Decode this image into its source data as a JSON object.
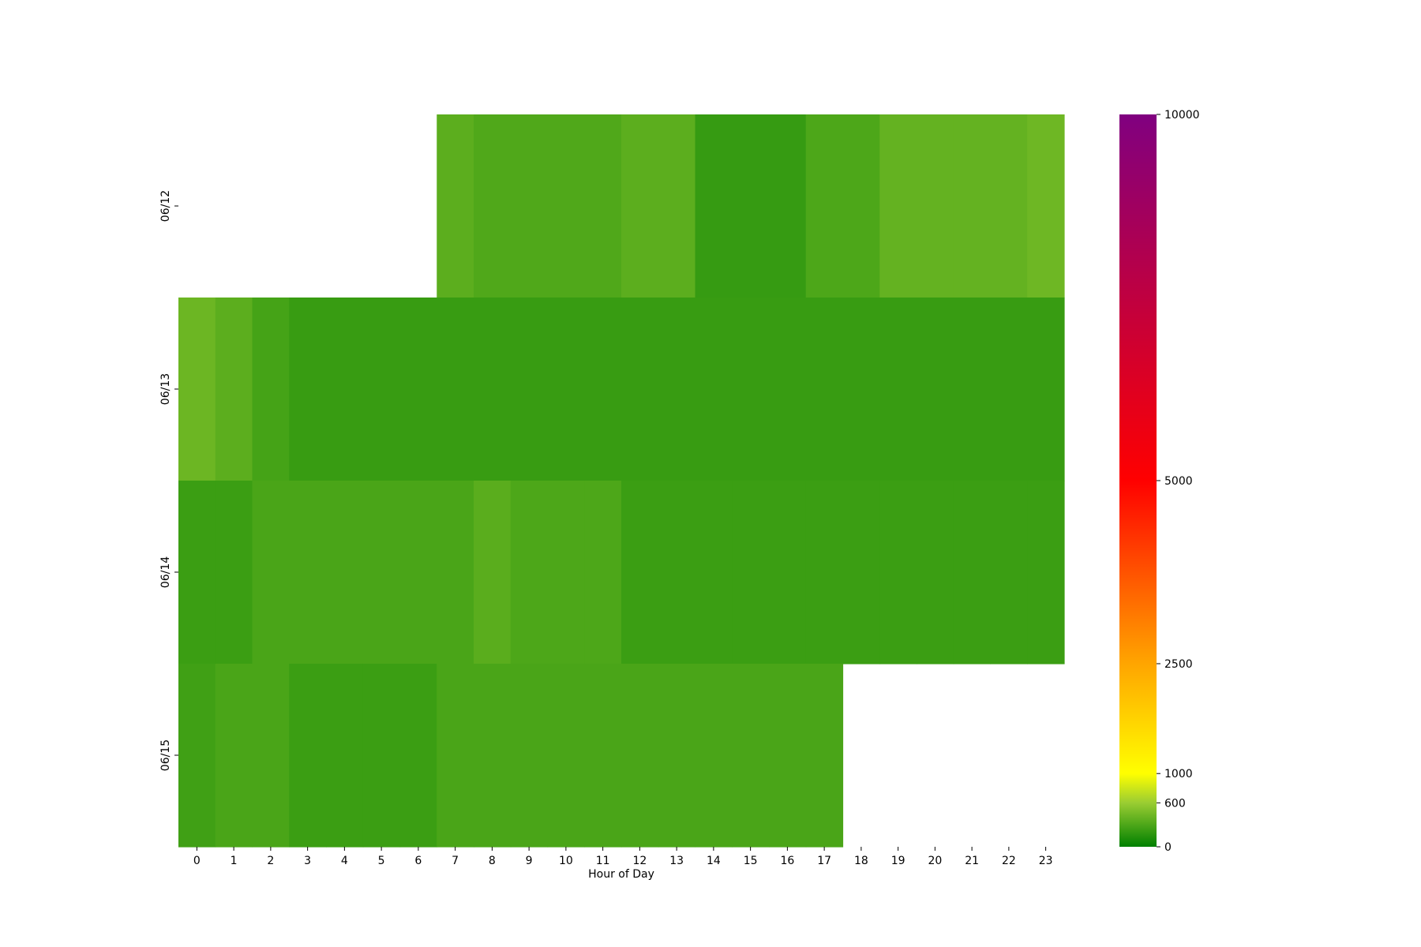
{
  "chart_data": {
    "type": "heatmap",
    "title": "",
    "xlabel": "Hour of Day",
    "ylabel": "",
    "x_categories": [
      "0",
      "1",
      "2",
      "3",
      "4",
      "5",
      "6",
      "7",
      "8",
      "9",
      "10",
      "11",
      "12",
      "13",
      "14",
      "15",
      "16",
      "17",
      "18",
      "19",
      "20",
      "21",
      "22",
      "23"
    ],
    "y_categories": [
      "06/12",
      "06/13",
      "06/14",
      "06/15"
    ],
    "values": [
      [
        null,
        null,
        null,
        null,
        null,
        null,
        null,
        360,
        310,
        310,
        310,
        310,
        360,
        360,
        210,
        210,
        210,
        300,
        300,
        390,
        390,
        390,
        390,
        430
      ],
      [
        420,
        360,
        270,
        220,
        220,
        220,
        220,
        220,
        220,
        220,
        220,
        220,
        220,
        220,
        220,
        220,
        220,
        220,
        220,
        220,
        220,
        220,
        220,
        220
      ],
      [
        230,
        230,
        290,
        290,
        290,
        290,
        290,
        290,
        350,
        300,
        300,
        300,
        230,
        230,
        230,
        230,
        230,
        230,
        230,
        230,
        230,
        230,
        230,
        230
      ],
      [
        250,
        290,
        290,
        230,
        230,
        230,
        230,
        290,
        290,
        290,
        290,
        290,
        290,
        290,
        290,
        290,
        290,
        290,
        null,
        null,
        null,
        null,
        null,
        null
      ]
    ],
    "colorbar": {
      "range": [
        0,
        10000
      ],
      "ticks": [
        "0",
        "600",
        "1000",
        "2500",
        "5000",
        "10000"
      ],
      "tick_values": [
        0,
        600,
        1000,
        2500,
        5000,
        10000
      ],
      "colors": [
        {
          "value": 0,
          "color": "#008000"
        },
        {
          "value": 600,
          "color": "#9acd32"
        },
        {
          "value": 1000,
          "color": "#ffff00"
        },
        {
          "value": 2500,
          "color": "#ffa500"
        },
        {
          "value": 5000,
          "color": "#ff0000"
        },
        {
          "value": 10000,
          "color": "#800080"
        }
      ]
    },
    "missing_color": "#ffffff"
  }
}
